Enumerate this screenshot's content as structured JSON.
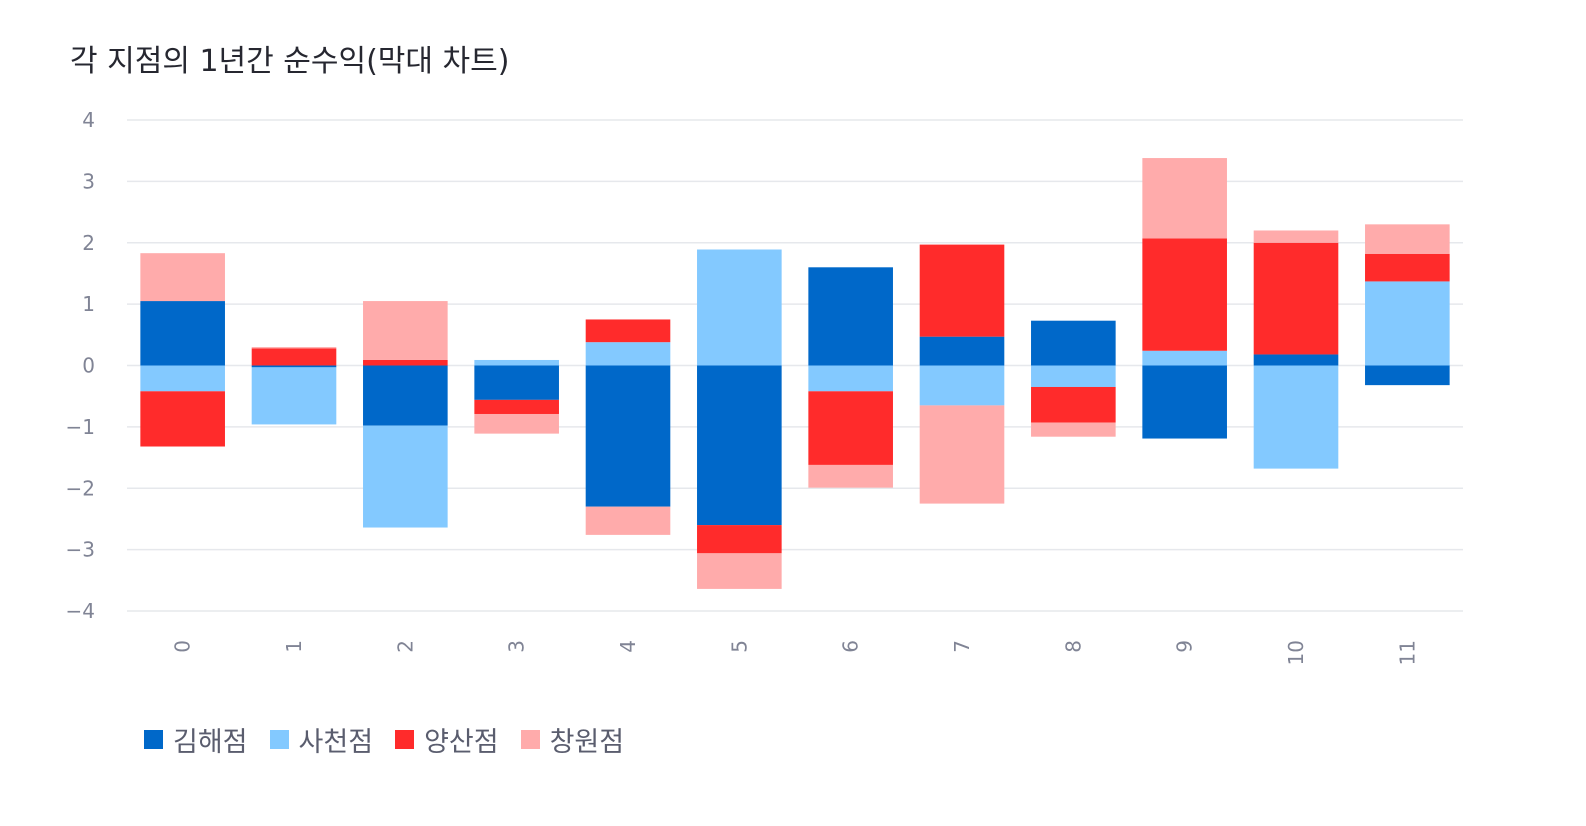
{
  "chart_data": {
    "type": "bar",
    "stacked": true,
    "title": "각 지점의 1년간 순수익(막대 차트)",
    "categories": [
      "0",
      "1",
      "2",
      "3",
      "4",
      "5",
      "6",
      "7",
      "8",
      "9",
      "10",
      "11"
    ],
    "ylim": [
      -4,
      4
    ],
    "yticks": [
      "4",
      "3",
      "2",
      "1",
      "0",
      "−1",
      "−2",
      "−3",
      "−4"
    ],
    "ytick_values": [
      4,
      3,
      2,
      1,
      0,
      -1,
      -2,
      -3,
      -4
    ],
    "xlabel": "",
    "ylabel": "",
    "grid": true,
    "legend_position": "bottom-left",
    "series": [
      {
        "name": "김해점",
        "color": "#0068c9",
        "values": [
          1.05,
          -0.03,
          -0.98,
          -0.56,
          -2.3,
          -2.6,
          1.6,
          0.47,
          0.73,
          -1.19,
          0.18,
          -0.32
        ]
      },
      {
        "name": "사천점",
        "color": "#83c9ff",
        "values": [
          -0.42,
          -0.93,
          -1.66,
          0.09,
          0.38,
          1.89,
          -0.42,
          -0.65,
          -0.35,
          0.24,
          -1.68,
          1.37
        ]
      },
      {
        "name": "양산점",
        "color": "#ff2b2b",
        "values": [
          -0.9,
          0.28,
          0.09,
          -0.23,
          0.37,
          -0.46,
          -1.2,
          1.5,
          -0.58,
          1.83,
          1.82,
          0.45
        ]
      },
      {
        "name": "창원점",
        "color": "#ffabab",
        "values": [
          0.78,
          0.02,
          0.96,
          -0.32,
          -0.46,
          -0.58,
          -0.37,
          -1.6,
          -0.23,
          1.31,
          0.2,
          0.48
        ]
      }
    ]
  }
}
